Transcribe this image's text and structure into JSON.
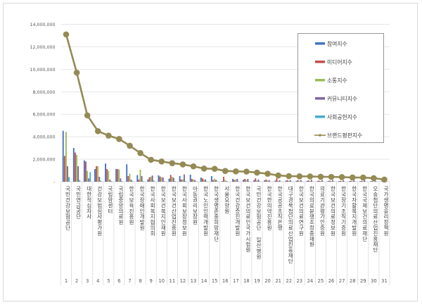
{
  "chart_data": {
    "type": "bar",
    "title": "",
    "xlabel": "",
    "ylabel": "",
    "ylim": [
      0,
      14000000
    ],
    "yticks": [
      0,
      2000000,
      4000000,
      6000000,
      8000000,
      10000000,
      12000000,
      14000000
    ],
    "ytick_labels": [
      "-",
      "2,000,000",
      "4,000,000",
      "6,000,000",
      "8,000,000",
      "10,000,000",
      "12,000,000",
      "14,000,000"
    ],
    "grid": true,
    "legend_placement": "top-right",
    "ranks": [
      "1",
      "2",
      "3",
      "4",
      "5",
      "6",
      "7",
      "8",
      "9",
      "10",
      "11",
      "12",
      "13",
      "14",
      "15",
      "16",
      "17",
      "18",
      "19",
      "20",
      "21",
      "22",
      "23",
      "24",
      "25",
      "26",
      "27",
      "28",
      "29",
      "30",
      "31"
    ],
    "categories": [
      "국민건강보험공단",
      "국민연금공단",
      "대한적십자사",
      "건강보험심사평가원",
      "국립암센터",
      "국립중앙의료원",
      "한국보육진흥원",
      "한국장애인개발원",
      "한국사회복지협의회",
      "한국보건복지인재원",
      "한국보건산업진흥원",
      "한국사회보장정보원",
      "아동권리보장원",
      "한국노인인력개발원",
      "한국생명존중희망재단",
      "서울요양원",
      "한국건강증진개발원",
      "한국보건의료인국가시험원",
      "국민건강보험공단 일산병원",
      "한국한의약진흥원",
      "한국공공조직은행",
      "대구경북첨단의료산업진흥재단",
      "한국보건의료연구원",
      "한국의료분쟁조정중재원",
      "의료기관평가인증원",
      "한국보건의료정보원",
      "한국장기조직기증원",
      "한국자활복지개발원",
      "한국국제보건의료재단",
      "오송첨단의료산업진흥재단",
      "국가생명윤리정책원"
    ],
    "series": [
      {
        "name": "참여지수",
        "type": "bar",
        "color": "#4472c4",
        "values": [
          4530000,
          3000000,
          1900000,
          1130000,
          1620000,
          1130000,
          1550000,
          590000,
          200000,
          570000,
          270000,
          500000,
          630000,
          380000,
          500000,
          60000,
          250000,
          180000,
          150000,
          120000,
          100000,
          90000,
          80000,
          80000,
          70000,
          70000,
          60000,
          60000,
          50000,
          50000,
          30000
        ]
      },
      {
        "name": "미디어지수",
        "type": "bar",
        "color": "#c0504d",
        "values": [
          2300000,
          2600000,
          1800000,
          1380000,
          1130000,
          1130000,
          500000,
          190000,
          400000,
          460000,
          610000,
          200000,
          250000,
          300000,
          150000,
          440000,
          150000,
          250000,
          300000,
          200000,
          300000,
          150000,
          150000,
          120000,
          100000,
          100000,
          80000,
          80000,
          70000,
          60000,
          40000
        ]
      },
      {
        "name": "소통지수",
        "type": "bar",
        "color": "#9bbb59",
        "values": [
          4430000,
          2400000,
          970000,
          1380000,
          970000,
          1090000,
          710000,
          1070000,
          450000,
          380000,
          440000,
          200000,
          200000,
          200000,
          270000,
          150000,
          200000,
          150000,
          100000,
          100000,
          80000,
          80000,
          70000,
          70000,
          60000,
          60000,
          60000,
          50000,
          50000,
          40000,
          30000
        ]
      },
      {
        "name": "커뮤니티지수",
        "type": "bar",
        "color": "#8064a2",
        "values": [
          1380000,
          1380000,
          300000,
          440000,
          190000,
          290000,
          190000,
          500000,
          550000,
          380000,
          360000,
          650000,
          150000,
          200000,
          170000,
          60000,
          250000,
          250000,
          200000,
          150000,
          120000,
          150000,
          150000,
          170000,
          150000,
          150000,
          130000,
          130000,
          130000,
          110000,
          60000
        ]
      },
      {
        "name": "사회공헌지수",
        "type": "bar",
        "color": "#4bacc6",
        "values": [
          420000,
          150000,
          860000,
          80000,
          60000,
          50000,
          50000,
          50000,
          100000,
          50000,
          50000,
          50000,
          30000,
          30000,
          30000,
          20000,
          30000,
          30000,
          30000,
          20000,
          20000,
          20000,
          20000,
          20000,
          20000,
          20000,
          20000,
          20000,
          20000,
          20000,
          10000
        ]
      },
      {
        "name": "브랜드평판지수",
        "type": "line",
        "color": "#948a54",
        "values": [
          13100000,
          9700000,
          5900000,
          4500000,
          4100000,
          3800000,
          3200000,
          2550000,
          1950000,
          1800000,
          1650000,
          1540000,
          1370000,
          1170000,
          1150000,
          960000,
          920000,
          900000,
          810000,
          710000,
          560000,
          500000,
          480000,
          470000,
          440000,
          430000,
          410000,
          380000,
          370000,
          320000,
          190000
        ]
      }
    ]
  }
}
